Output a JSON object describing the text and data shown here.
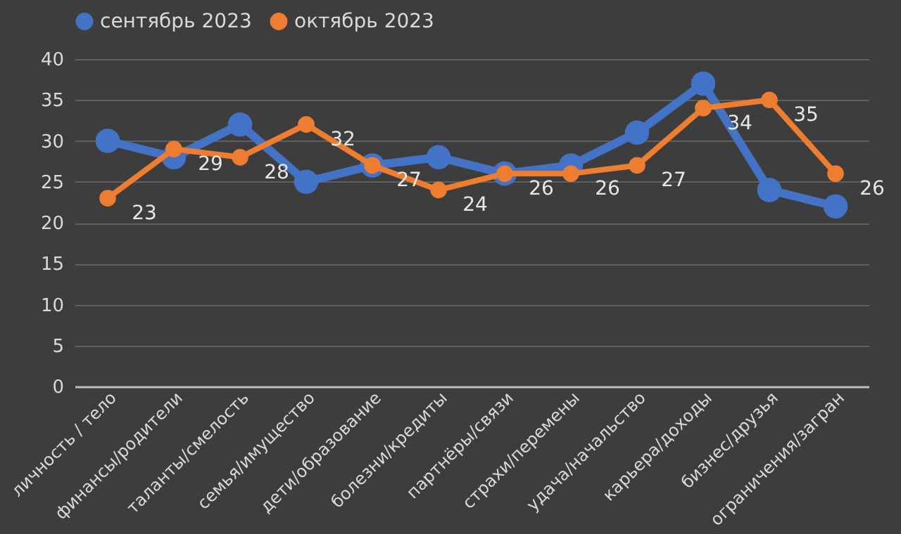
{
  "chart_data": {
    "type": "line",
    "categories": [
      "личность / тело",
      "финансы/родители",
      "таланты/смелость",
      "семья/имущество",
      "дети/образование",
      "болезни/кредиты",
      "партнёры/связи",
      "страхи/перемены",
      "удача/начальство",
      "карьера/доходы",
      "бизнес/друзья",
      "ограничения/загран"
    ],
    "series": [
      {
        "name": "сентябрь 2023",
        "color": "#4472c4",
        "values": [
          30,
          28,
          32,
          25,
          27,
          28,
          26,
          27,
          31,
          37,
          24,
          22
        ]
      },
      {
        "name": "октябрь 2023",
        "color": "#ed7d31",
        "values": [
          23,
          29,
          28,
          32,
          27,
          24,
          26,
          26,
          27,
          34,
          35,
          26
        ],
        "value_labels": [
          "23",
          "29",
          "28",
          "32",
          "27",
          "24",
          "26",
          "26",
          "27",
          "34",
          "35",
          "26"
        ]
      }
    ],
    "ylim": [
      0,
      40
    ],
    "yticks": [
      0,
      5,
      10,
      15,
      20,
      25,
      30,
      35,
      40
    ],
    "grid": "y",
    "legend": "top",
    "marker": "circle",
    "line_style": "solid"
  }
}
